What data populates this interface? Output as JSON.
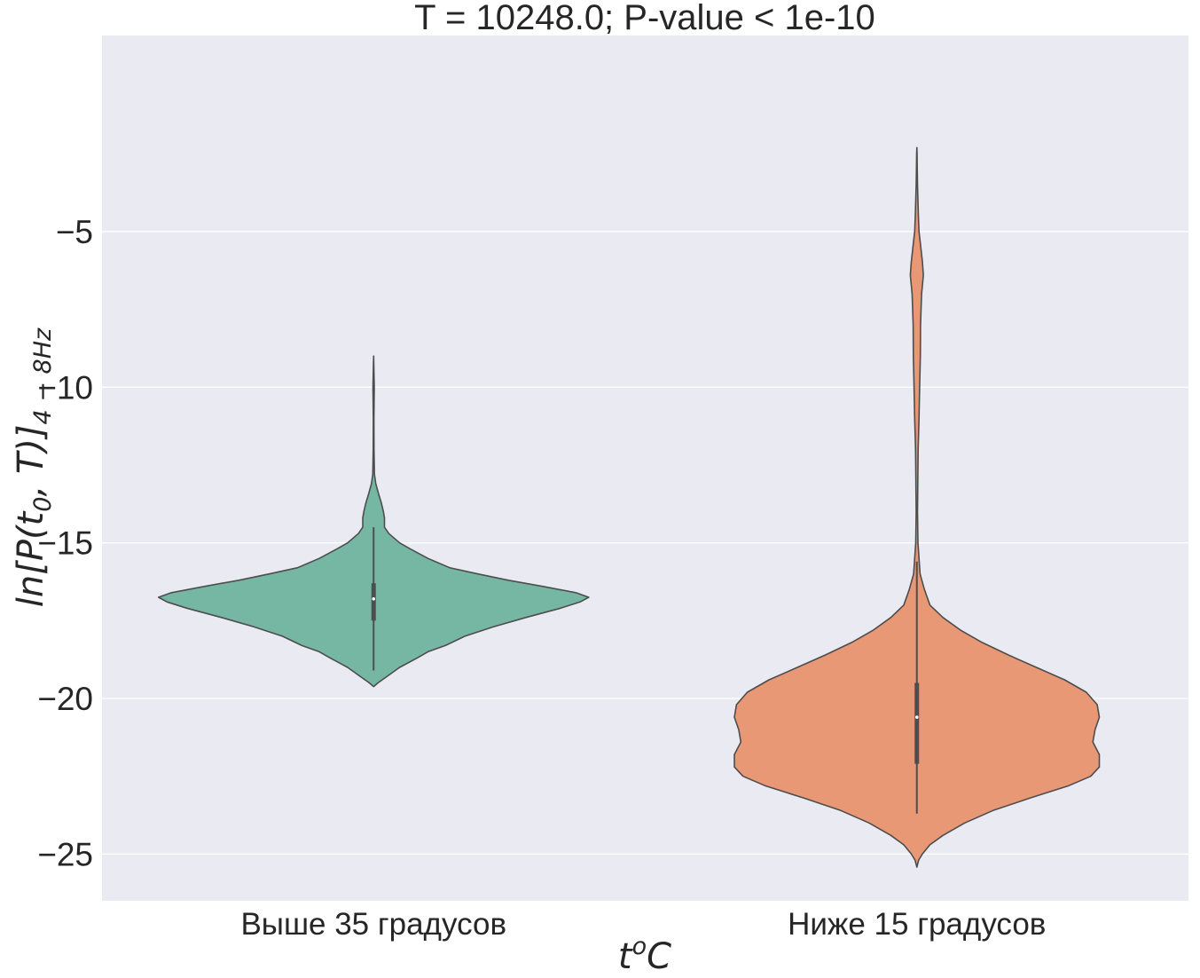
{
  "chart_data": {
    "type": "violin",
    "title": "T = 10248.0; P-value < 1e-10",
    "xlabel_main": "t",
    "xlabel_sup": "o",
    "xlabel_tail": "C",
    "ylabel_main": "ln[P(t",
    "ylabel_sub0": "0",
    "ylabel_mid": ", T)]",
    "ylabel_sub": "4 − 8Hz",
    "ylim": [
      -26.5,
      1.3
    ],
    "yticks": [
      -5,
      -10,
      -15,
      -20,
      -25
    ],
    "ytick_labels": [
      "−5",
      "−10",
      "−15",
      "−20",
      "−25"
    ],
    "grid": true,
    "categories": [
      "Выше 35 градусов",
      "Ниже 15 градусов"
    ],
    "colors": {
      "background": "#eaeaf2",
      "grid": "#ffffff",
      "outline": "#4d4d4d",
      "series": [
        "#76b7a3",
        "#e99876"
      ]
    },
    "series": [
      {
        "category": "Выше 35 градусов",
        "median": -16.8,
        "q1": -17.5,
        "q3": -16.3,
        "whisker_low": -19.1,
        "whisker_high": -14.5,
        "min": -19.6,
        "max": -9.0,
        "density": [
          [
            -19.62,
            0
          ],
          [
            -19.5,
            0.02
          ],
          [
            -19.3,
            0.06
          ],
          [
            -19.0,
            0.12
          ],
          [
            -18.7,
            0.2
          ],
          [
            -18.5,
            0.25
          ],
          [
            -18.3,
            0.33
          ],
          [
            -18.0,
            0.42
          ],
          [
            -17.7,
            0.55
          ],
          [
            -17.4,
            0.7
          ],
          [
            -17.1,
            0.86
          ],
          [
            -16.9,
            0.95
          ],
          [
            -16.75,
            0.99
          ],
          [
            -16.6,
            0.93
          ],
          [
            -16.4,
            0.78
          ],
          [
            -16.2,
            0.62
          ],
          [
            -16.0,
            0.48
          ],
          [
            -15.8,
            0.35
          ],
          [
            -15.5,
            0.25
          ],
          [
            -15.2,
            0.17
          ],
          [
            -15.0,
            0.12
          ],
          [
            -14.7,
            0.07
          ],
          [
            -14.5,
            0.05
          ],
          [
            -14.2,
            0.05
          ],
          [
            -14.0,
            0.045
          ],
          [
            -13.7,
            0.035
          ],
          [
            -13.4,
            0.022
          ],
          [
            -13.1,
            0.01
          ],
          [
            -12.8,
            0.004
          ],
          [
            -12.0,
            0.002
          ],
          [
            -11.0,
            0.0015
          ],
          [
            -10.0,
            0.003
          ],
          [
            -9.6,
            0.002
          ],
          [
            -9.3,
            0.001
          ],
          [
            -9.0,
            0
          ]
        ]
      },
      {
        "category": "Ниже 15 градусов",
        "median": -20.6,
        "q1": -22.1,
        "q3": -19.5,
        "whisker_low": -23.7,
        "whisker_high": -15.6,
        "min": -25.4,
        "max": -2.3,
        "density": [
          [
            -25.42,
            0
          ],
          [
            -25.2,
            0.008
          ],
          [
            -25.0,
            0.025
          ],
          [
            -24.7,
            0.06
          ],
          [
            -24.4,
            0.12
          ],
          [
            -24.0,
            0.22
          ],
          [
            -23.6,
            0.35
          ],
          [
            -23.2,
            0.52
          ],
          [
            -22.8,
            0.7
          ],
          [
            -22.5,
            0.8
          ],
          [
            -22.2,
            0.84
          ],
          [
            -21.8,
            0.84
          ],
          [
            -21.4,
            0.81
          ],
          [
            -21.0,
            0.82
          ],
          [
            -20.6,
            0.84
          ],
          [
            -20.2,
            0.83
          ],
          [
            -19.8,
            0.78
          ],
          [
            -19.4,
            0.68
          ],
          [
            -19.0,
            0.55
          ],
          [
            -18.6,
            0.42
          ],
          [
            -18.2,
            0.3
          ],
          [
            -17.8,
            0.2
          ],
          [
            -17.4,
            0.12
          ],
          [
            -17.0,
            0.06
          ],
          [
            -16.5,
            0.035
          ],
          [
            -16.0,
            0.015
          ],
          [
            -15.0,
            0.005
          ],
          [
            -14.0,
            0.003
          ],
          [
            -12.0,
            0.006
          ],
          [
            -11.0,
            0.01
          ],
          [
            -10.0,
            0.013
          ],
          [
            -9.0,
            0.016
          ],
          [
            -8.0,
            0.017
          ],
          [
            -7.0,
            0.022
          ],
          [
            -6.4,
            0.03
          ],
          [
            -6.0,
            0.026
          ],
          [
            -5.5,
            0.018
          ],
          [
            -5.0,
            0.01
          ],
          [
            -4.5,
            0.007
          ],
          [
            -4.0,
            0.005
          ],
          [
            -3.5,
            0.003
          ],
          [
            -3.0,
            0.002
          ],
          [
            -2.5,
            0.001
          ],
          [
            -2.3,
            0
          ]
        ]
      }
    ]
  }
}
